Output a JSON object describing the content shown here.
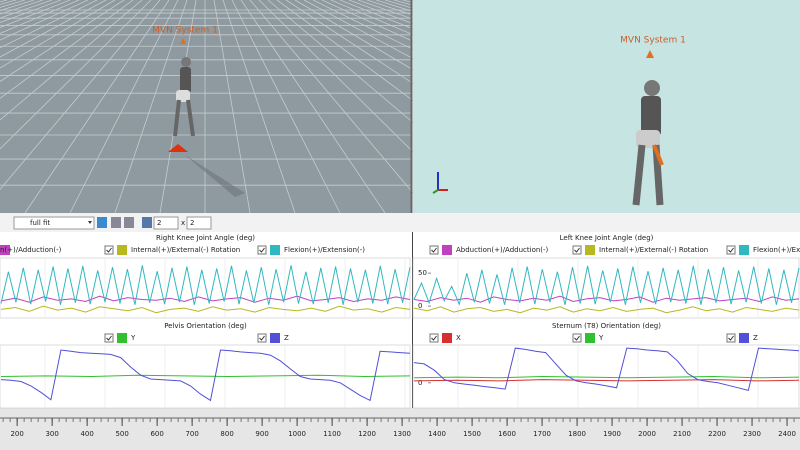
{
  "views": [
    {
      "label": "MVN System 1"
    },
    {
      "label": "MVN System 1"
    }
  ],
  "toolbar": {
    "zoom": "full fit",
    "rows": "2",
    "times": "x",
    "cols": "2"
  },
  "timeline": {
    "xlim": [
      151,
      2437
    ],
    "ticks": [
      200,
      300,
      400,
      500,
      600,
      700,
      800,
      900,
      1000,
      1100,
      1200,
      1300,
      1400,
      1500,
      1600,
      1700,
      1800,
      1900,
      2000,
      2100,
      2200,
      2300,
      2400
    ]
  },
  "panels": [
    {
      "title": "Right Knee Joint Angle (deg)",
      "ylim": [
        -18,
        73
      ],
      "yticks": [],
      "series": [
        {
          "name": "n(+)/Adduction(-)",
          "color": "#c040c0",
          "values": [
            8,
            12,
            6,
            14,
            9,
            11,
            7,
            15,
            8,
            13,
            10,
            9,
            12,
            7,
            14,
            8,
            11,
            13,
            6,
            12,
            9,
            15,
            8,
            10,
            13,
            7,
            11,
            9,
            14,
            10
          ]
        },
        {
          "name": "Internal(+)/External(-) Rotation",
          "color": "#b8b820",
          "values": [
            -5,
            -2,
            -8,
            0,
            -6,
            -3,
            -9,
            -1,
            -4,
            -7,
            -2,
            -10,
            -5,
            -3,
            -8,
            -1,
            -6,
            -4,
            -9,
            -2,
            -5,
            -7,
            -3,
            -8,
            0,
            -6,
            -4,
            -9,
            -2,
            -5
          ]
        },
        {
          "name": "Flexion(+)/Extension(-)",
          "color": "#30b8c0",
          "values": [
            4,
            52,
            6,
            58,
            3,
            55,
            7,
            60,
            2,
            57,
            5,
            61,
            3,
            54,
            6,
            59,
            4,
            56,
            2,
            62,
            5,
            53,
            3,
            58,
            6,
            60,
            2,
            55,
            4,
            57,
            7,
            61,
            3,
            54,
            5,
            59,
            2,
            56,
            6,
            62,
            4,
            52,
            3,
            58,
            5,
            60,
            2,
            57,
            6,
            55,
            4,
            61,
            3,
            56,
            5,
            59
          ]
        }
      ]
    },
    {
      "title": "Left Knee Joint Angle (deg)",
      "ylim": [
        -18,
        73
      ],
      "yticks": [
        50,
        0
      ],
      "series": [
        {
          "name": "Abduction(+)/Adduction(-)",
          "color": "#c040c0",
          "values": [
            10,
            7,
            13,
            9,
            12,
            6,
            14,
            10,
            8,
            12,
            9,
            15,
            7,
            11,
            13,
            8,
            10,
            14,
            6,
            12,
            9,
            11,
            13,
            8,
            10,
            12,
            7,
            14,
            9,
            11
          ]
        },
        {
          "name": "Internal(+)/External(-) Rotation",
          "color": "#b8b820",
          "values": [
            -3,
            -7,
            -1,
            -9,
            -4,
            -2,
            -8,
            -5,
            -10,
            -3,
            -6,
            -1,
            -9,
            -4,
            -7,
            -2,
            -8,
            -5,
            -3,
            -10,
            -6,
            -1,
            -7,
            -4,
            -9,
            -2,
            -5,
            -8,
            -3,
            -6
          ]
        },
        {
          "name": "Flexion(+)/Extension(-)",
          "color": "#30b8c0",
          "values": [
            10,
            35,
            5,
            42,
            8,
            30,
            3,
            50,
            6,
            55,
            4,
            48,
            2,
            58,
            5,
            60,
            3,
            56,
            6,
            52,
            2,
            59,
            4,
            61,
            3,
            54,
            6,
            57,
            2,
            60,
            5,
            53,
            3,
            58,
            6,
            55,
            4,
            61,
            2,
            56,
            5,
            59,
            3,
            54,
            6,
            60,
            4,
            57,
            2,
            55,
            5,
            58
          ]
        }
      ]
    },
    {
      "title": "Pelvis Orientation (deg)",
      "ylim": [
        -40,
        60
      ],
      "yticks": [],
      "series": [
        {
          "name": "Y",
          "color": "#30c030",
          "values": [
            10,
            11,
            10,
            12,
            11,
            10,
            11,
            12,
            10,
            11
          ]
        },
        {
          "name": "Z",
          "color": "#5050d8",
          "values": [
            5,
            4,
            2,
            -5,
            -15,
            -27,
            52,
            50,
            48,
            47,
            46,
            45,
            40,
            25,
            12,
            6,
            5,
            4,
            3,
            -5,
            -18,
            -28,
            52,
            51,
            49,
            48,
            47,
            44,
            35,
            22,
            10,
            6,
            5,
            4,
            0,
            -10,
            -20,
            -28,
            50,
            49,
            48,
            47
          ]
        }
      ]
    },
    {
      "title": "Sternum (T8) Orientation (deg)",
      "ylim": [
        -40,
        60
      ],
      "yticks": [
        0
      ],
      "series": [
        {
          "name": "X",
          "color": "#d83030",
          "values": [
            3,
            4,
            3,
            5,
            4,
            3,
            4,
            5,
            3,
            4
          ]
        },
        {
          "name": "Y",
          "color": "#30c030",
          "values": [
            8,
            9,
            8,
            10,
            9,
            8,
            9,
            10,
            8,
            9
          ]
        },
        {
          "name": "Z",
          "color": "#5050d8",
          "values": [
            32,
            30,
            20,
            5,
            0,
            -2,
            -4,
            -6,
            -8,
            -10,
            55,
            53,
            50,
            48,
            30,
            12,
            3,
            0,
            -2,
            -5,
            -8,
            55,
            54,
            52,
            51,
            49,
            35,
            15,
            5,
            2,
            0,
            -4,
            -8,
            -12,
            55,
            54,
            53,
            52,
            51
          ]
        }
      ]
    }
  ]
}
